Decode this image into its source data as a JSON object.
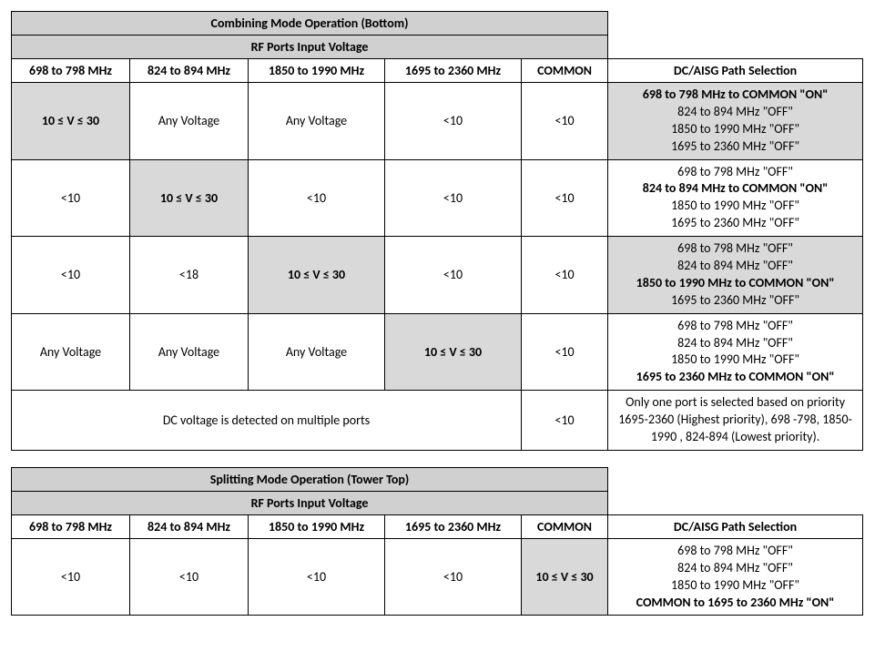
{
  "combining": {
    "title": "Combining Mode Operation (Bottom)",
    "subtitle": "RF Ports Input Voltage",
    "columns": [
      "698 to 798 MHz",
      "824 to 894 MHz",
      "1850 to 1990 MHz",
      "1695 to 2360 MHz",
      "COMMON",
      "DC/AISG Path Selection"
    ],
    "rows": [
      {
        "c1": "10 ≤ V ≤ 30",
        "c1_shade": true,
        "c1_bold": true,
        "c2": "Any Voltage",
        "c2_shade": false,
        "c3": "Any Voltage",
        "c3_shade": false,
        "c4": "<10",
        "c4_shade": false,
        "c5": "<10",
        "c5_shade": false,
        "path": [
          {
            "text": "698 to 798 MHz to COMMON \"ON\"",
            "on": true
          },
          {
            "text": "824 to 894 MHz \"OFF\"",
            "on": false
          },
          {
            "text": "1850 to 1990 MHz \"OFF\"",
            "on": false
          },
          {
            "text": "1695 to 2360 MHz \"OFF\"",
            "on": false
          }
        ],
        "path_shade": true
      },
      {
        "c1": "<10",
        "c1_shade": false,
        "c2": "10 ≤ V ≤ 30",
        "c2_shade": true,
        "c2_bold": true,
        "c3": "<10",
        "c3_shade": false,
        "c4": "<10",
        "c4_shade": false,
        "c5": "<10",
        "c5_shade": false,
        "path": [
          {
            "text": "698 to 798 MHz \"OFF\"",
            "on": false
          },
          {
            "text": "824 to 894 MHz to COMMON \"ON\"",
            "on": true
          },
          {
            "text": "1850 to 1990 MHz \"OFF\"",
            "on": false
          },
          {
            "text": "1695 to 2360 MHz \"OFF\"",
            "on": false
          }
        ],
        "path_shade": false
      },
      {
        "c1": "<10",
        "c1_shade": false,
        "c2": "<18",
        "c2_shade": false,
        "c3": "10 ≤ V ≤ 30",
        "c3_shade": true,
        "c3_bold": true,
        "c4": "<10",
        "c4_shade": false,
        "c5": "<10",
        "c5_shade": false,
        "path": [
          {
            "text": "698 to 798 MHz \"OFF\"",
            "on": false
          },
          {
            "text": "824 to 894 MHz \"OFF\"",
            "on": false
          },
          {
            "text": "1850 to 1990 MHz to COMMON \"ON\"",
            "on": true
          },
          {
            "text": "1695 to 2360 MHz \"OFF\"",
            "on": false
          }
        ],
        "path_shade": true
      },
      {
        "c1": "Any Voltage",
        "c1_shade": false,
        "c2": "Any Voltage",
        "c2_shade": false,
        "c3": "Any Voltage",
        "c3_shade": false,
        "c4": "10 ≤ V ≤ 30",
        "c4_shade": true,
        "c4_bold": true,
        "c5": "<10",
        "c5_shade": false,
        "path": [
          {
            "text": "698 to 798 MHz  \"OFF\"",
            "on": false
          },
          {
            "text": "824 to 894 MHz \"OFF\"",
            "on": false
          },
          {
            "text": "1850 to 1990 MHz \"OFF\"",
            "on": false
          },
          {
            "text": "1695 to 2360 MHz to COMMON \"ON\"",
            "on": true
          }
        ],
        "path_shade": false
      }
    ],
    "multi_row": {
      "merged_text": "DC voltage is detected on multiple ports",
      "c5": "<10",
      "path_text": "Only one port is selected based on priority 1695-2360 (Highest priority), 698 -798, 1850-1990 , 824-894 (Lowest priority)."
    }
  },
  "splitting": {
    "title": "Splitting Mode Operation (Tower Top)",
    "subtitle": "RF Ports Input Voltage",
    "columns": [
      "698 to 798 MHz",
      "824 to 894 MHz",
      "1850 to 1990 MHz",
      "1695 to 2360 MHz",
      "COMMON",
      "DC/AISG Path Selection"
    ],
    "row": {
      "c1": "<10",
      "c2": "<10",
      "c3": "<10",
      "c4": "<10",
      "c5": "10 ≤ V ≤ 30",
      "c5_shade": true,
      "c5_bold": true,
      "path": [
        {
          "text": "698 to 798 MHz \"OFF\"",
          "on": false
        },
        {
          "text": "824 to 894 MHz \"OFF\"",
          "on": false
        },
        {
          "text": "1850 to 1990 MHz \"OFF\"",
          "on": false
        },
        {
          "text": "COMMON to 1695 to 2360 MHz \"ON\"",
          "on": true
        }
      ]
    }
  }
}
